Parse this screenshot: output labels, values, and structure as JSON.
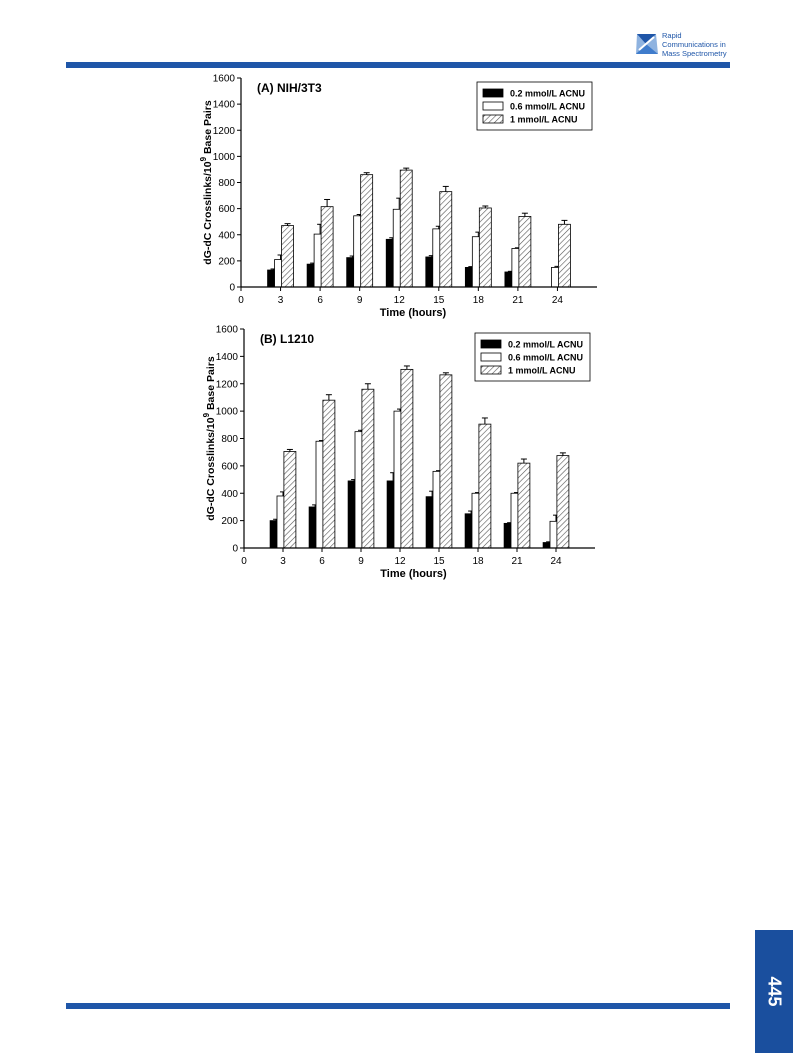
{
  "journal": {
    "name_lines": [
      "Rapid",
      "Communications in",
      "Mass Spectrometry"
    ],
    "accent_color": "#1f56a8"
  },
  "page_number": "445",
  "chart_data": [
    {
      "type": "bar",
      "title": "(A) NIH/3T3",
      "xlabel": "Time (hours)",
      "ylabel": "dG-dC Crosslinks/10^9 Base Pairs",
      "ylim": [
        0,
        1600
      ],
      "yticks": [
        0,
        200,
        400,
        600,
        800,
        1000,
        1200,
        1400,
        1600
      ],
      "xlim": [
        0,
        27
      ],
      "xticks": [
        0,
        3,
        6,
        9,
        12,
        15,
        18,
        21,
        24
      ],
      "legend_position": "top-right",
      "series": [
        {
          "name": "0.2 mmol/L ACNU",
          "fill": "solid",
          "x": [
            3,
            6,
            9,
            12,
            15,
            18,
            21
          ],
          "values": [
            130,
            175,
            225,
            365,
            230,
            150,
            115
          ],
          "errors": [
            8,
            8,
            12,
            12,
            10,
            6,
            5
          ]
        },
        {
          "name": "0.6 mmol/L ACNU",
          "fill": "open",
          "x": [
            3,
            6,
            9,
            12,
            15,
            18,
            21,
            24
          ],
          "values": [
            210,
            405,
            545,
            595,
            445,
            385,
            295,
            150
          ],
          "errors": [
            35,
            75,
            10,
            85,
            20,
            35,
            5,
            8
          ]
        },
        {
          "name": "1 mmol/L ACNU",
          "fill": "hatched",
          "x": [
            3,
            6,
            9,
            12,
            15,
            18,
            21,
            24
          ],
          "values": [
            470,
            615,
            860,
            895,
            730,
            605,
            540,
            480
          ],
          "errors": [
            15,
            55,
            15,
            15,
            40,
            15,
            25,
            30
          ]
        }
      ]
    },
    {
      "type": "bar",
      "title": "(B) L1210",
      "xlabel": "Time (hours)",
      "ylabel": "dG-dC Crosslinks/10^9 Base Pairs",
      "ylim": [
        0,
        1600
      ],
      "yticks": [
        0,
        200,
        400,
        600,
        800,
        1000,
        1200,
        1400,
        1600
      ],
      "xlim": [
        0,
        27
      ],
      "xticks": [
        0,
        3,
        6,
        9,
        12,
        15,
        18,
        21,
        24
      ],
      "legend_position": "top-right",
      "series": [
        {
          "name": "0.2 mmol/L ACNU",
          "fill": "solid",
          "x": [
            3,
            6,
            9,
            12,
            15,
            18,
            21,
            24
          ],
          "values": [
            200,
            300,
            490,
            490,
            375,
            250,
            180,
            40
          ],
          "errors": [
            10,
            15,
            10,
            60,
            40,
            20,
            5,
            5
          ]
        },
        {
          "name": "0.6 mmol/L ACNU",
          "fill": "open",
          "x": [
            3,
            6,
            9,
            12,
            15,
            18,
            21,
            24
          ],
          "values": [
            380,
            780,
            850,
            1000,
            560,
            400,
            400,
            195
          ],
          "errors": [
            30,
            5,
            10,
            15,
            5,
            5,
            5,
            45
          ]
        },
        {
          "name": "1 mmol/L ACNU",
          "fill": "hatched",
          "x": [
            3,
            6,
            9,
            12,
            15,
            18,
            21,
            24
          ],
          "values": [
            705,
            1080,
            1160,
            1305,
            1265,
            905,
            620,
            675
          ],
          "errors": [
            15,
            40,
            40,
            25,
            15,
            45,
            30,
            20
          ]
        }
      ]
    }
  ]
}
